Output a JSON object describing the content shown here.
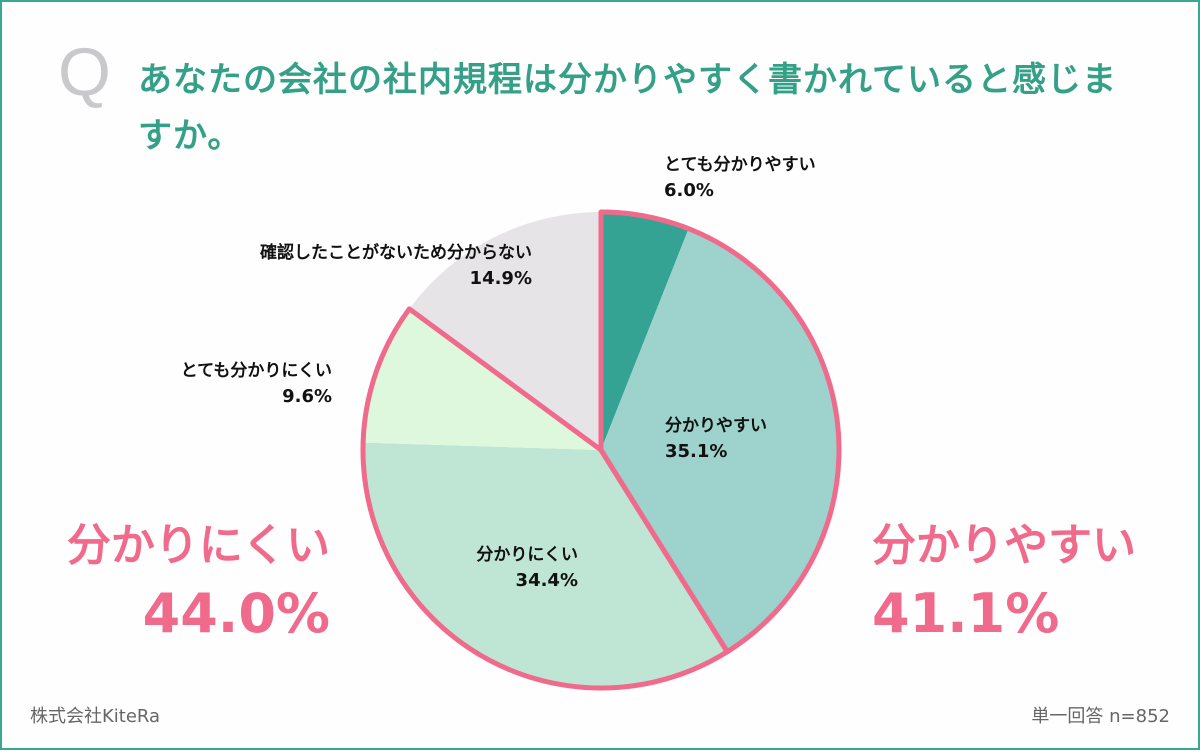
{
  "header": {
    "q_mark": "Q",
    "question": "あなたの会社の社内規程は分かりやすく書かれていると感じますか。"
  },
  "colors": {
    "frame": "#3aa78f",
    "title": "#35a088",
    "accent_pink": "#f06a8c",
    "q_mark": "#c9c9cc"
  },
  "chart_data": {
    "type": "pie",
    "title": "あなたの会社の社内規程は分かりやすく書かれていると感じますか。",
    "start_angle": "12 o'clock",
    "direction": "clockwise",
    "categories": [
      "とても分かりやすい",
      "分かりやすい",
      "分かりにくい",
      "とても分かりにくい",
      "確認したことがないため分からない"
    ],
    "values": [
      6.0,
      35.1,
      34.4,
      9.6,
      14.9
    ],
    "unit": "%",
    "slice_colors": [
      "#35a393",
      "#9ed3cd",
      "#bfe6d5",
      "#ddf8dc",
      "#e6e4e6"
    ],
    "groups": [
      {
        "name": "分かりやすい",
        "value": 41.1,
        "members": [
          "とても分かりやすい",
          "分かりやすい"
        ],
        "outline_color": "#f06a8c"
      },
      {
        "name": "分かりにくい",
        "value": 44.0,
        "members": [
          "分かりにくい",
          "とても分かりにくい"
        ],
        "outline_color": "#f06a8c"
      }
    ],
    "sample_size": 852,
    "answer_type": "単一回答"
  },
  "labels": {
    "very_easy": {
      "name": "とても分かりやすい",
      "pct": "6.0%"
    },
    "easy": {
      "name": "分かりやすい",
      "pct": "35.1%"
    },
    "hard": {
      "name": "分かりにくい",
      "pct": "34.4%"
    },
    "very_hard": {
      "name": "とても分かりにくい",
      "pct": "9.6%"
    },
    "unknown": {
      "name": "確認したことがないため分からない",
      "pct": "14.9%"
    }
  },
  "summary": {
    "easy_total": {
      "name": "分かりやすい",
      "pct": "41.1%"
    },
    "hard_total": {
      "name": "分かりにくい",
      "pct": "44.0%"
    }
  },
  "footer": {
    "company": "株式会社KiteRa",
    "note": "単一回答 n=852"
  }
}
